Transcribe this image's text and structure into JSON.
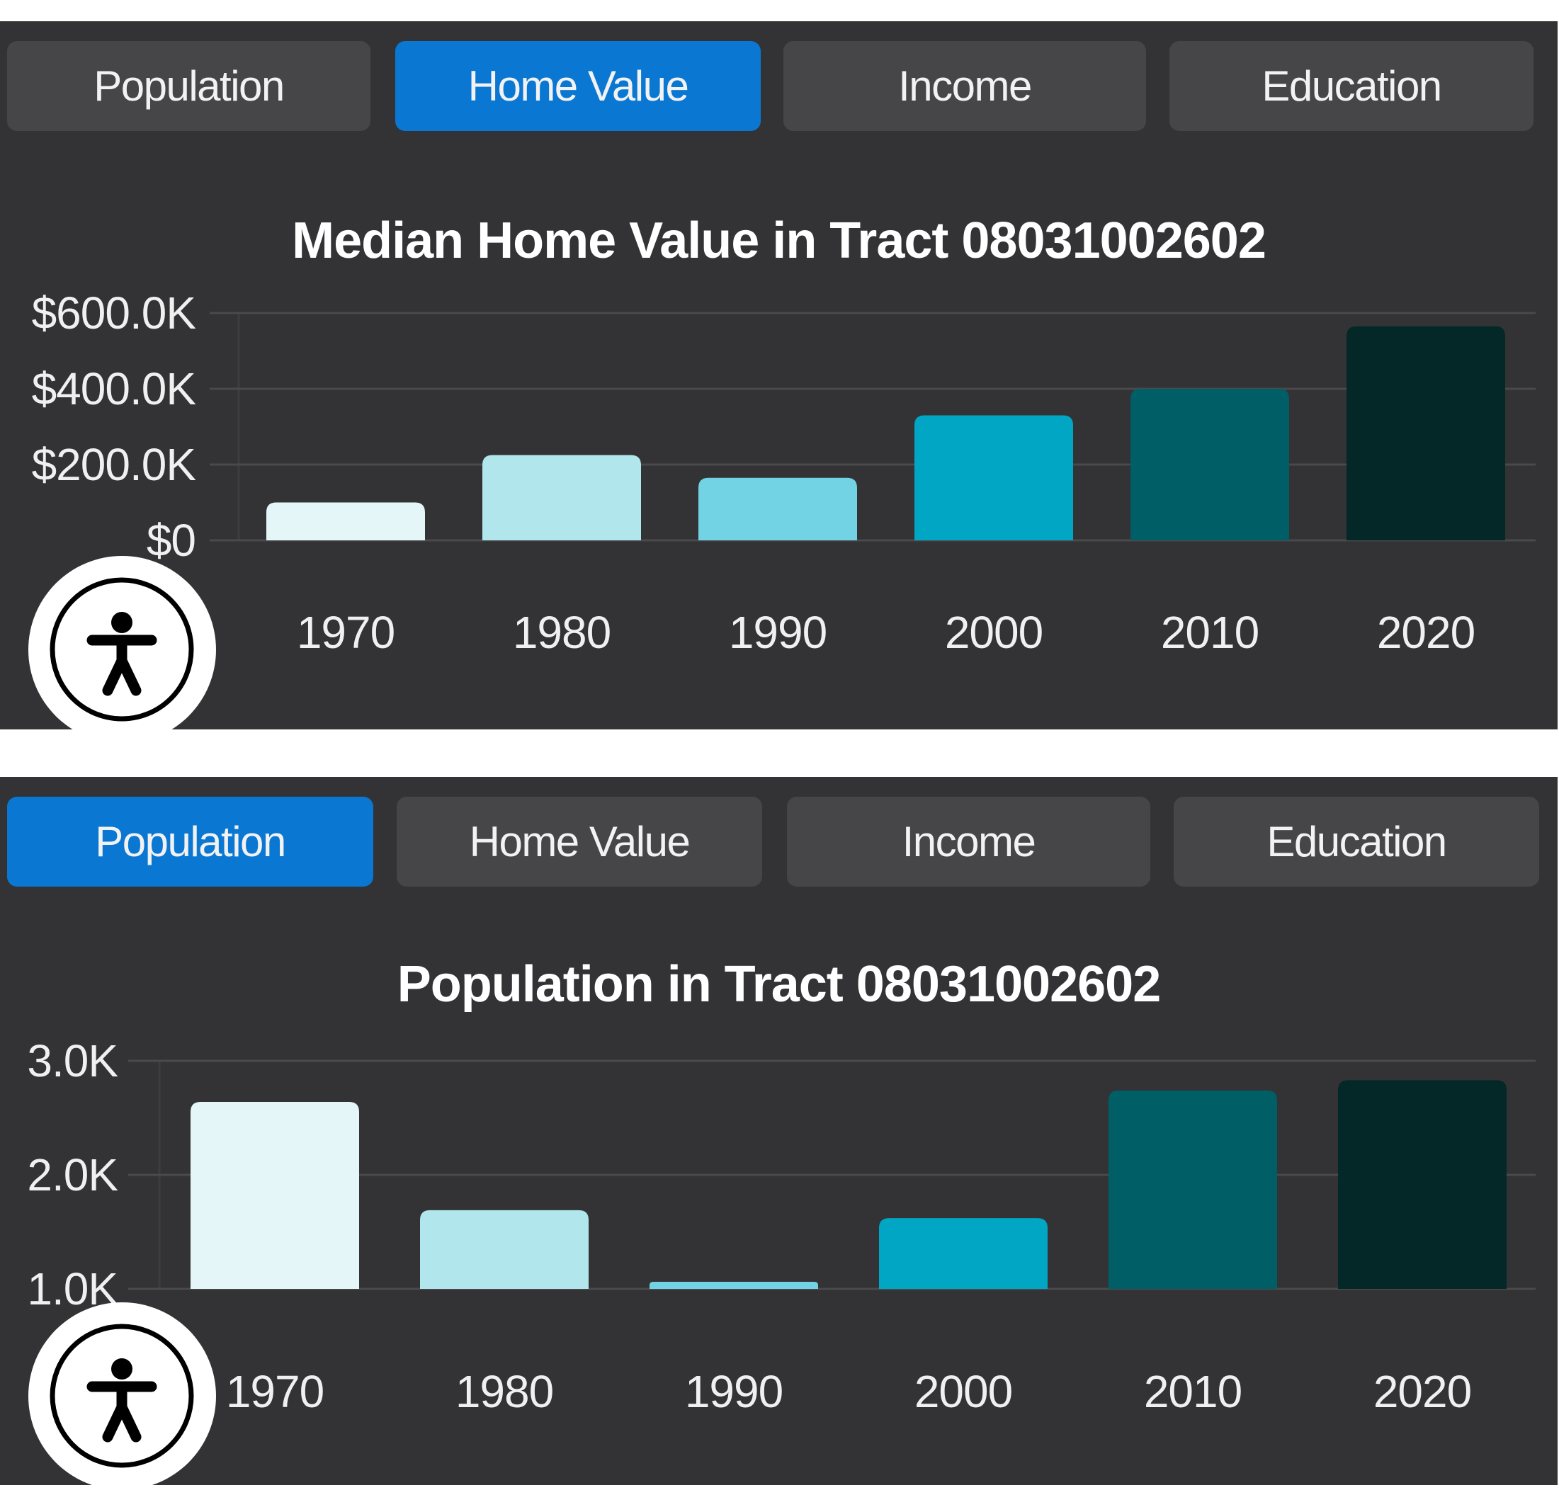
{
  "panels": [
    {
      "tabs": [
        {
          "label": "Population",
          "active": false
        },
        {
          "label": "Home Value",
          "active": true
        },
        {
          "label": "Income",
          "active": false
        },
        {
          "label": "Education",
          "active": false
        }
      ],
      "accessibility_button": {
        "icon": "accessibility-person-icon"
      }
    },
    {
      "tabs": [
        {
          "label": "Population",
          "active": true
        },
        {
          "label": "Home Value",
          "active": false
        },
        {
          "label": "Income",
          "active": false
        },
        {
          "label": "Education",
          "active": false
        }
      ],
      "accessibility_button": {
        "icon": "accessibility-person-icon"
      }
    }
  ],
  "colors": {
    "panel_bg": "#333335",
    "tab_bg": "#464648",
    "tab_active_bg": "#0a78d2",
    "bar_palette": [
      "#e4f6f8",
      "#b1e6ed",
      "#72d3e4",
      "#00a6c4",
      "#005e66",
      "#032827"
    ]
  },
  "chart_data": [
    {
      "type": "bar",
      "title": "Median Home Value in Tract 08031002602",
      "categories": [
        "1970",
        "1980",
        "1990",
        "2000",
        "2010",
        "2020"
      ],
      "values": [
        100000,
        225000,
        165000,
        330000,
        400000,
        565000
      ],
      "ylim": [
        0,
        600000
      ],
      "yticks": [
        0,
        200000,
        400000,
        600000
      ],
      "ytick_labels": [
        "$0",
        "$200.0K",
        "$400.0K",
        "$600.0K"
      ],
      "xlabel": "",
      "ylabel": "",
      "grid": true,
      "legend": "none"
    },
    {
      "type": "bar",
      "title": "Population in Tract 08031002602",
      "categories": [
        "1970",
        "1980",
        "1990",
        "2000",
        "2010",
        "2020"
      ],
      "values": [
        2640,
        1690,
        1030,
        1620,
        2740,
        2830
      ],
      "ylim": [
        1000,
        3000
      ],
      "yticks": [
        1000,
        2000,
        3000
      ],
      "ytick_labels": [
        "1.0K",
        "2.0K",
        "3.0K"
      ],
      "xlabel": "",
      "ylabel": "",
      "grid": true,
      "legend": "none"
    }
  ]
}
